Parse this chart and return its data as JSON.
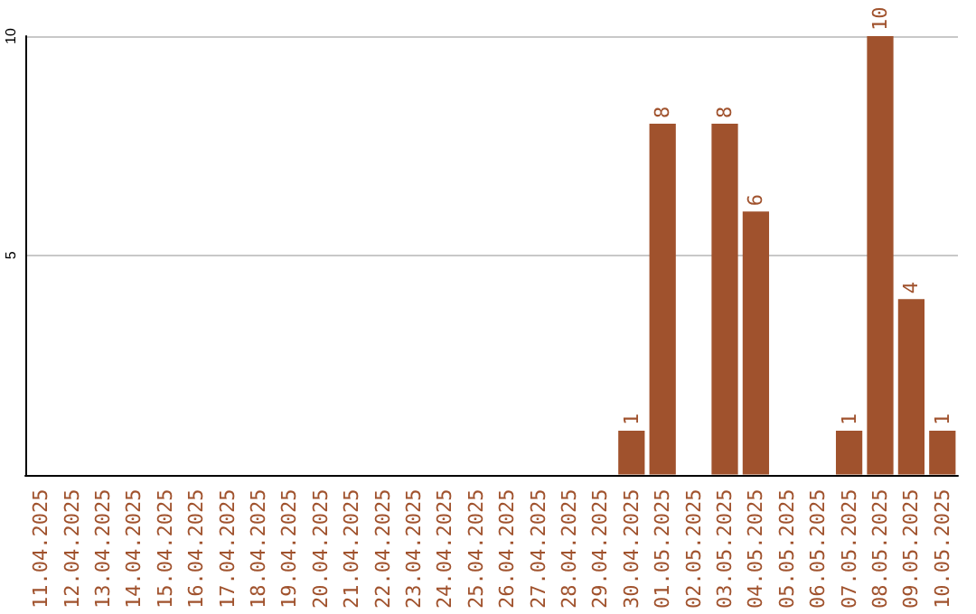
{
  "chart_data": {
    "type": "bar",
    "categories": [
      "11.04.2025",
      "12.04.2025",
      "13.04.2025",
      "14.04.2025",
      "15.04.2025",
      "16.04.2025",
      "17.04.2025",
      "18.04.2025",
      "19.04.2025",
      "20.04.2025",
      "21.04.2025",
      "22.04.2025",
      "23.04.2025",
      "24.04.2025",
      "25.04.2025",
      "26.04.2025",
      "27.04.2025",
      "28.04.2025",
      "29.04.2025",
      "30.04.2025",
      "01.05.2025",
      "02.05.2025",
      "03.05.2025",
      "04.05.2025",
      "05.05.2025",
      "06.05.2025",
      "07.05.2025",
      "08.05.2025",
      "09.05.2025",
      "10.05.2025"
    ],
    "values": [
      0,
      0,
      0,
      0,
      0,
      0,
      0,
      0,
      0,
      0,
      0,
      0,
      0,
      0,
      0,
      0,
      0,
      0,
      0,
      1,
      8,
      0,
      8,
      6,
      0,
      0,
      1,
      10,
      4,
      1
    ],
    "value_labels": [
      null,
      null,
      null,
      null,
      null,
      null,
      null,
      null,
      null,
      null,
      null,
      null,
      null,
      null,
      null,
      null,
      null,
      null,
      null,
      "1",
      "8",
      null,
      "8",
      "6",
      null,
      null,
      "1",
      "10",
      "4",
      "1"
    ],
    "color": "#a0522d",
    "ylim": [
      0,
      10
    ],
    "yticks": [
      5,
      10
    ],
    "grid": "y"
  }
}
